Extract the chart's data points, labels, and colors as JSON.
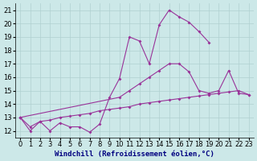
{
  "xlabel": "Windchill (Refroidissement éolien,°C)",
  "bg_color": "#cce8e8",
  "grid_color": "#b0d0d0",
  "line_color": "#993399",
  "xlim": [
    -0.5,
    23.5
  ],
  "ylim": [
    11.5,
    21.5
  ],
  "xticks": [
    0,
    1,
    2,
    3,
    4,
    5,
    6,
    7,
    8,
    9,
    10,
    11,
    12,
    13,
    14,
    15,
    16,
    17,
    18,
    19,
    20,
    21,
    22,
    23
  ],
  "yticks": [
    12,
    13,
    14,
    15,
    16,
    17,
    18,
    19,
    20,
    21
  ],
  "line1_x": [
    0,
    1,
    2,
    3,
    4,
    5,
    6,
    7,
    8,
    9,
    10,
    11,
    12,
    13,
    14,
    15,
    16,
    17,
    18,
    19
  ],
  "line1_y": [
    13.0,
    12.0,
    12.7,
    12.0,
    12.6,
    12.3,
    12.3,
    11.9,
    12.5,
    14.5,
    15.9,
    19.0,
    18.7,
    17.0,
    19.9,
    21.0,
    20.5,
    20.1,
    19.4,
    18.6
  ],
  "line2_x": [
    0,
    10,
    11,
    12,
    13,
    14,
    15,
    16,
    17,
    18,
    19,
    20,
    21,
    22,
    23
  ],
  "line2_y": [
    13.0,
    14.5,
    15.0,
    15.5,
    16.0,
    16.5,
    17.0,
    17.0,
    16.4,
    15.0,
    14.8,
    15.0,
    16.5,
    14.8,
    14.7
  ],
  "line3_x": [
    0,
    1,
    2,
    3,
    4,
    5,
    6,
    7,
    8,
    9,
    10,
    11,
    12,
    13,
    14,
    15,
    16,
    17,
    18,
    19,
    20,
    21,
    22,
    23
  ],
  "line3_y": [
    13.0,
    12.3,
    12.7,
    12.8,
    13.0,
    13.1,
    13.2,
    13.3,
    13.5,
    13.6,
    13.7,
    13.8,
    14.0,
    14.1,
    14.2,
    14.3,
    14.4,
    14.5,
    14.6,
    14.7,
    14.8,
    14.9,
    15.0,
    14.7
  ],
  "xlabel_fontsize": 6.5,
  "tick_fontsize": 6,
  "marker": "D",
  "marker_size": 2,
  "linewidth": 0.8
}
